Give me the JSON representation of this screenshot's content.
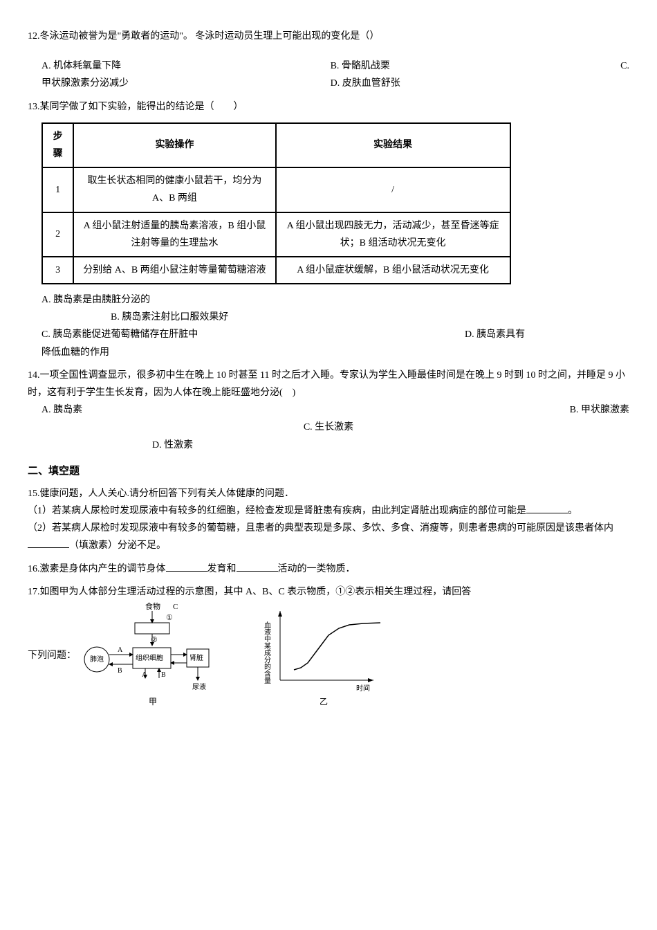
{
  "q12": {
    "text": "12.冬泳运动被誉为是\"勇敢者的运动\"。 冬泳时运动员生理上可能出现的变化是（）",
    "optA": "A. 机体耗氧量下降",
    "optB": "B. 骨骼肌战栗",
    "optC": "C.",
    "optC_cont": "甲状腺激素分泌减少",
    "optD": "D. 皮肤血管舒张"
  },
  "q13": {
    "text": "13.某同学做了如下实验，能得出的结论是（　　）",
    "table": {
      "headers": [
        "步骤",
        "实验操作",
        "实验结果"
      ],
      "rows": [
        [
          "1",
          "取生长状态相同的健康小鼠若干，均分为 A、B 两组",
          "/"
        ],
        [
          "2",
          "A 组小鼠注射适量的胰岛素溶液，B 组小鼠注射等量的生理盐水",
          "A 组小鼠出现四肢无力，活动减少，甚至昏迷等症状；B 组活动状况无变化"
        ],
        [
          "3",
          "分别给 A、B 两组小鼠注射等量葡萄糖溶液",
          "A 组小鼠症状缓解，B 组小鼠活动状况无变化"
        ]
      ]
    },
    "optA": "A. 胰岛素是由胰脏分泌的",
    "optB": "B. 胰岛素注射比口服效果好",
    "optC": "C. 胰岛素能促进葡萄糖储存在肝脏中",
    "optD": "D. 胰岛素具有",
    "optD_cont": "降低血糖的作用"
  },
  "q14": {
    "text": "14.一项全国性调查显示，很多初中生在晚上 10 时甚至 11 时之后才入睡。专家认为学生入睡最佳时间是在晚上 9 时到 10 时之间，并睡足 9 小时，这有利于学生生长发育，因为人体在晚上能旺盛地分泌(　)",
    "optA": "A. 胰岛素",
    "optB": "B. 甲状腺激素",
    "optC": "C. 生长激素",
    "optD": "D. 性激素"
  },
  "section2": "二、填空题",
  "q15": {
    "text": "15.健康问题，人人关心.请分析回答下列有关人体健康的问题．",
    "p1a": "（1）若某病人尿检时发现尿液中有较多的红细胞，经检查发现是肾脏患有疾病，由此判定肾脏出现病症的部位可能是",
    "p1b": "。",
    "p2a": "（2）若某病人尿检时发现尿液中有较多的葡萄糖，且患者的典型表现是多尿、多饮、多食、消瘦等，则患者患病的可能原因是该患者体内",
    "p2b": "（填激素）分泌不足。"
  },
  "q16": {
    "a": "16.激素是身体内产生的调节身体",
    "b": "发育和",
    "c": "活动的一类物质．"
  },
  "q17": {
    "text": "17.如图甲为人体部分生理活动过程的示意图，其中 A、B、C 表示物质，①②表示相关生理过程，请回答",
    "caption": "下列问题："
  },
  "figure_jia": {
    "labels": {
      "food": "食物",
      "feiPao": "肺泡",
      "zuZhi": "组织细胞",
      "shen": "肾脏",
      "niaoYe": "尿液",
      "jia": "甲",
      "A": "A",
      "B": "B",
      "C": "C",
      "one": "①",
      "two": "②"
    },
    "colors": {
      "stroke": "#000000",
      "fill": "#ffffff"
    }
  },
  "figure_yi": {
    "xlabel": "时间",
    "ylabel": "血液中某成分的含量",
    "yi": "乙",
    "colors": {
      "axis": "#000000",
      "curve": "#000000",
      "background": "#ffffff"
    },
    "curve_points": [
      [
        20,
        15
      ],
      [
        30,
        18
      ],
      [
        40,
        25
      ],
      [
        55,
        45
      ],
      [
        70,
        65
      ],
      [
        85,
        75
      ],
      [
        100,
        80
      ],
      [
        120,
        82
      ],
      [
        145,
        83
      ]
    ]
  }
}
